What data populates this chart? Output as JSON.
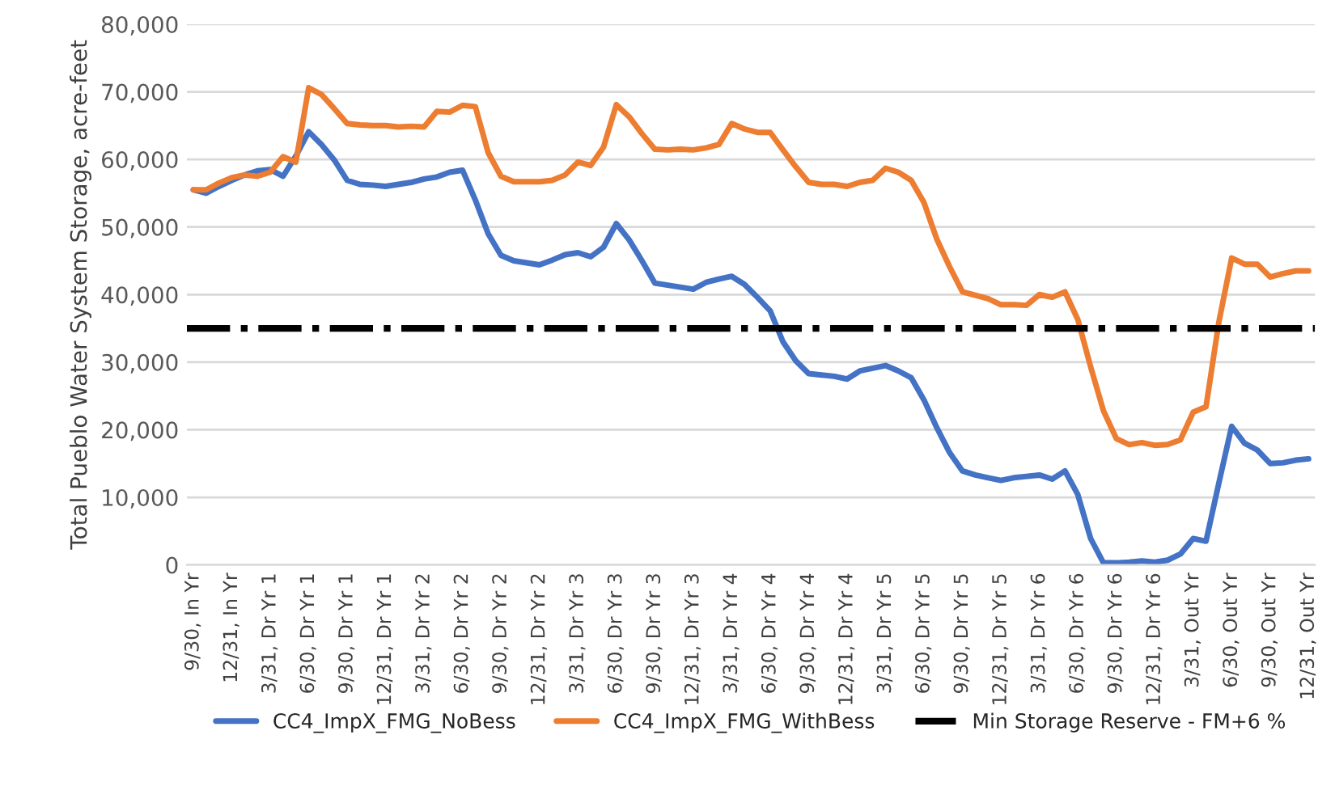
{
  "chart_data": {
    "type": "line",
    "ylabel": "Total Pueblo Water System Storage, acre-feet",
    "categories": [
      "9/30, In Yr",
      null,
      null,
      "12/31, In Yr",
      null,
      null,
      "3/31, Dr Yr 1",
      null,
      null,
      "6/30, Dr Yr 1",
      null,
      null,
      "9/30, Dr Yr 1",
      null,
      null,
      "12/31, Dr Yr 1",
      null,
      null,
      "3/31, Dr Yr 2",
      null,
      null,
      "6/30, Dr Yr 2",
      null,
      null,
      "9/30, Dr Yr 2",
      null,
      null,
      "12/31, Dr Yr 2",
      null,
      null,
      "3/31, Dr Yr 3",
      null,
      null,
      "6/30, Dr Yr 3",
      null,
      null,
      "9/30, Dr Yr 3",
      null,
      null,
      "12/31, Dr Yr 3",
      null,
      null,
      "3/31, Dr Yr 4",
      null,
      null,
      "6/30, Dr Yr 4",
      null,
      null,
      "9/30, Dr Yr 4",
      null,
      null,
      "12/31, Dr Yr 4",
      null,
      null,
      "3/31, Dr Yr 5",
      null,
      null,
      "6/30, Dr Yr 5",
      null,
      null,
      "9/30, Dr Yr 5",
      null,
      null,
      "12/31, Dr Yr 5",
      null,
      null,
      "3/31, Dr Yr 6",
      null,
      null,
      "6/30, Dr Yr 6",
      null,
      null,
      "9/30, Dr Yr 6",
      null,
      null,
      "12/31, Dr Yr 6",
      null,
      null,
      "3/31, Out Yr",
      null,
      null,
      "6/30, Out Yr",
      null,
      null,
      "9/30, Out Yr",
      null,
      null,
      "12/31, Out Yr"
    ],
    "series": [
      {
        "name": "CC4_ImpX_FMG_NoBess",
        "color": "#4472c4",
        "values": [
          55500,
          55000,
          56000,
          56900,
          57700,
          58300,
          58500,
          57500,
          60500,
          64100,
          62200,
          59900,
          56900,
          56300,
          56200,
          56000,
          56300,
          56600,
          57100,
          57400,
          58100,
          58400,
          54000,
          49000,
          45800,
          45000,
          44700,
          44400,
          45100,
          45900,
          46200,
          45600,
          47000,
          50500,
          48100,
          45000,
          41700,
          41400,
          41100,
          40800,
          41800,
          42300,
          42700,
          41500,
          39600,
          37600,
          33000,
          30200,
          28300,
          28100,
          27900,
          27500,
          28700,
          29100,
          29500,
          28700,
          27700,
          24400,
          20300,
          16600,
          13900,
          13300,
          12900,
          12500,
          12900,
          13100,
          13300,
          12700,
          13900,
          10400,
          3900,
          300,
          300,
          400,
          600,
          400,
          700,
          1600,
          3900,
          3500,
          12100,
          20500,
          18000,
          17000,
          15000,
          15100,
          15500,
          15700
        ]
      },
      {
        "name": "CC4_ImpX_FMG_WithBess",
        "color": "#ed7d31",
        "values": [
          55500,
          55500,
          56500,
          57300,
          57700,
          57500,
          58100,
          60400,
          59600,
          70600,
          69600,
          67500,
          65300,
          65100,
          65000,
          65000,
          64800,
          64900,
          64800,
          67100,
          67000,
          68000,
          67800,
          61000,
          57500,
          56700,
          56700,
          56700,
          56900,
          57700,
          59600,
          59100,
          61800,
          68100,
          66300,
          63800,
          61500,
          61400,
          61500,
          61400,
          61700,
          62200,
          65300,
          64500,
          64000,
          64000,
          61400,
          58900,
          56600,
          56300,
          56300,
          56000,
          56600,
          56900,
          58700,
          58100,
          56900,
          53600,
          48200,
          44100,
          40400,
          39900,
          39400,
          38500,
          38500,
          38400,
          40000,
          39600,
          40400,
          36300,
          29300,
          22800,
          18700,
          17800,
          18100,
          17700,
          17800,
          18500,
          22600,
          23400,
          35900,
          45400,
          44500,
          44500,
          42600,
          43100,
          43500,
          43500
        ]
      }
    ],
    "ref_lines": [
      {
        "axis": "y",
        "value": 35000,
        "label": "Min Storage Reserve - FM+6 %",
        "color": "#000000",
        "line_style": "dashdot"
      }
    ],
    "ylim": [
      0,
      80000
    ],
    "yticks": [
      {
        "value": 0,
        "label": "0"
      },
      {
        "value": 10000,
        "label": "10,000"
      },
      {
        "value": 20000,
        "label": "20,000"
      },
      {
        "value": 30000,
        "label": "30,000"
      },
      {
        "value": 40000,
        "label": "40,000"
      },
      {
        "value": 50000,
        "label": "50,000"
      },
      {
        "value": 60000,
        "label": "60,000"
      },
      {
        "value": 70000,
        "label": "70,000"
      },
      {
        "value": 80000,
        "label": "80,000"
      }
    ],
    "grid": "y",
    "legend": "bottom"
  }
}
